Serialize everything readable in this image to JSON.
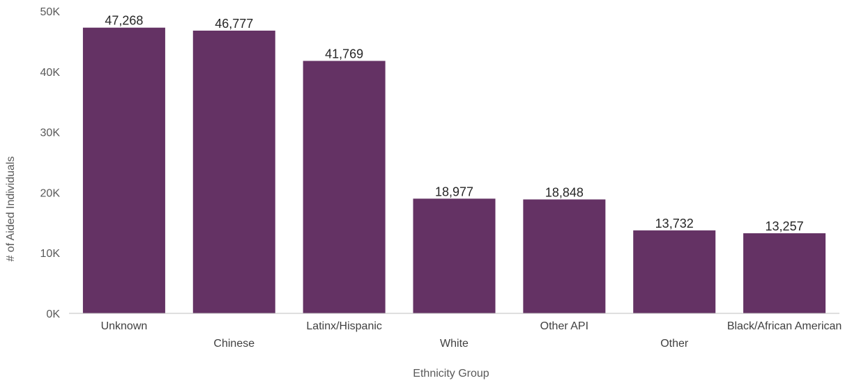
{
  "chart_data": {
    "type": "bar",
    "categories": [
      "Unknown",
      "Chinese",
      "Latinx/Hispanic",
      "White",
      "Other API",
      "Other",
      "Black/African American"
    ],
    "values": [
      47268,
      46777,
      41769,
      18977,
      18848,
      13732,
      13257
    ],
    "data_labels": [
      "47,268",
      "46,777",
      "41,769",
      "18,977",
      "18,848",
      "13,732",
      "13,257"
    ],
    "xlabel": "Ethnicity Group",
    "ylabel": "# of Aided Individuals",
    "ylim": [
      0,
      50000
    ],
    "yticks": [
      0,
      10000,
      20000,
      30000,
      40000,
      50000
    ],
    "ytick_labels": [
      "0K",
      "10K",
      "20K",
      "30K",
      "40K",
      "50K"
    ],
    "grid": false,
    "bar_color": "#643264"
  }
}
